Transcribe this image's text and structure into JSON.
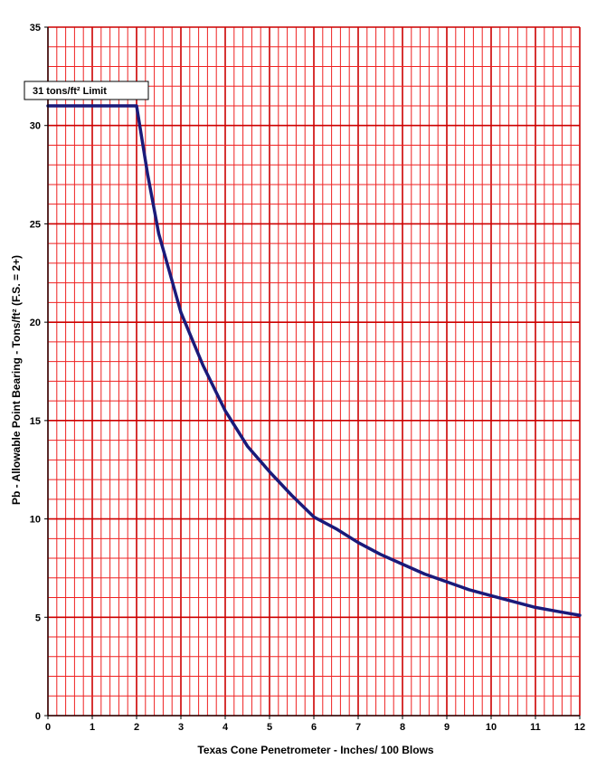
{
  "chart_data": {
    "type": "line",
    "title": "",
    "xlabel": "Texas Cone Penetrometer - Inches/ 100 Blows",
    "ylabel": "Pb - Allowable Point Bearing - Tons/ft² (F.S. = 2+)",
    "xlim": [
      0,
      12
    ],
    "ylim": [
      0,
      35
    ],
    "x_major_ticks": [
      0,
      1,
      2,
      3,
      4,
      5,
      6,
      7,
      8,
      9,
      10,
      11,
      12
    ],
    "y_major_ticks": [
      0,
      5,
      10,
      15,
      20,
      25,
      30,
      35
    ],
    "x_minor_step": 0.2,
    "y_minor_step": 1,
    "grid": true,
    "grid_color": "#ee2222",
    "grid_major_color": "#cc0000",
    "line_color": "#1a1a7a",
    "annotation": "31 tons/ft² Limit",
    "series": [
      {
        "x": [
          0,
          2,
          2.25,
          2.5,
          2.75,
          3,
          3.5,
          4,
          4.5,
          5,
          5.5,
          6,
          6.5,
          7,
          7.5,
          8,
          8.5,
          9,
          9.5,
          10,
          10.5,
          11,
          11.5,
          12
        ],
        "values": [
          31,
          31,
          27.5,
          24.5,
          22.5,
          20.5,
          17.8,
          15.5,
          13.7,
          12.4,
          11.2,
          10.1,
          9.5,
          8.8,
          8.2,
          7.7,
          7.2,
          6.8,
          6.4,
          6.1,
          5.8,
          5.5,
          5.3,
          5.1
        ]
      }
    ]
  }
}
